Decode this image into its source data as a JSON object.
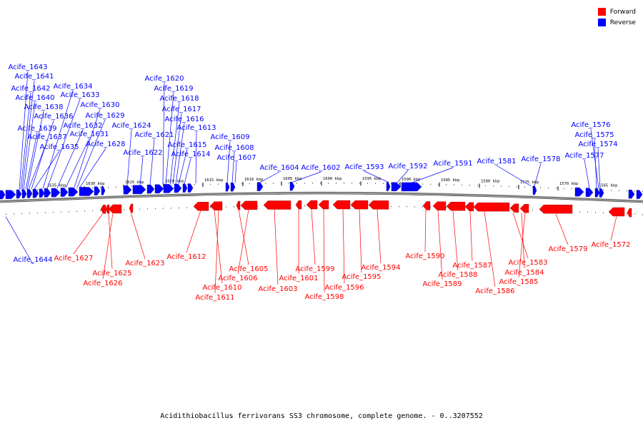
{
  "caption": "Acidithiobacillus ferrivorans SS3 chromosome, complete genome. - 0..3207552",
  "legend": [
    {
      "label": "Forward",
      "color": "#ff0000"
    },
    {
      "label": "Reverse",
      "color": "#0000ff"
    }
  ],
  "colors": {
    "forward": "#ff0000",
    "reverse": "#0000ff",
    "backbone": "#808080"
  },
  "scale_ticks": [
    "1635 kbp",
    "1630 kbp",
    "1625 kbp",
    "1620 kbp",
    "1615 kbp",
    "1610 kbp",
    "1605 kbp",
    "1600 kbp",
    "1595 kbp",
    "1590 kbp",
    "1585 kbp",
    "1580 kbp",
    "1575 kbp",
    "1570 kbp",
    "1565 kbp"
  ],
  "reverse_labels": [
    "Acife_1643",
    "Acife_1641",
    "Acife_1642",
    "Acife_1640",
    "Acife_1638",
    "Acife_1636",
    "Acife_1639",
    "Acife_1637",
    "Acife_1635",
    "Acife_1634",
    "Acife_1633",
    "Acife_1630",
    "Acife_1629",
    "Acife_1632",
    "Acife_1631",
    "Acife_1628",
    "Acife_1624",
    "Acife_1620",
    "Acife_1619",
    "Acife_1618",
    "Acife_1617",
    "Acife_1616",
    "Acife_1613",
    "Acife_1621",
    "Acife_1615",
    "Acife_1622",
    "Acife_1614",
    "Acife_1609",
    "Acife_1608",
    "Acife_1607",
    "Acife_1604",
    "Acife_1602",
    "Acife_1593",
    "Acife_1592",
    "Acife_1591",
    "Acife_1581",
    "Acife_1578",
    "Acife_1576",
    "Acife_1575",
    "Acife_1574",
    "Acife_1577",
    "Acife_1644"
  ],
  "forward_labels": [
    "Acife_1627",
    "Acife_1625",
    "Acife_1626",
    "Acife_1623",
    "Acife_1612",
    "Acife_1610",
    "Acife_1611",
    "Acife_1605",
    "Acife_1606",
    "Acife_1603",
    "Acife_1601",
    "Acife_1599",
    "Acife_1598",
    "Acife_1596",
    "Acife_1595",
    "Acife_1594",
    "Acife_1590",
    "Acife_1589",
    "Acife_1588",
    "Acife_1587",
    "Acife_1586",
    "Acife_1583",
    "Acife_1584",
    "Acife_1585",
    "Acife_1579",
    "Acife_1572"
  ]
}
